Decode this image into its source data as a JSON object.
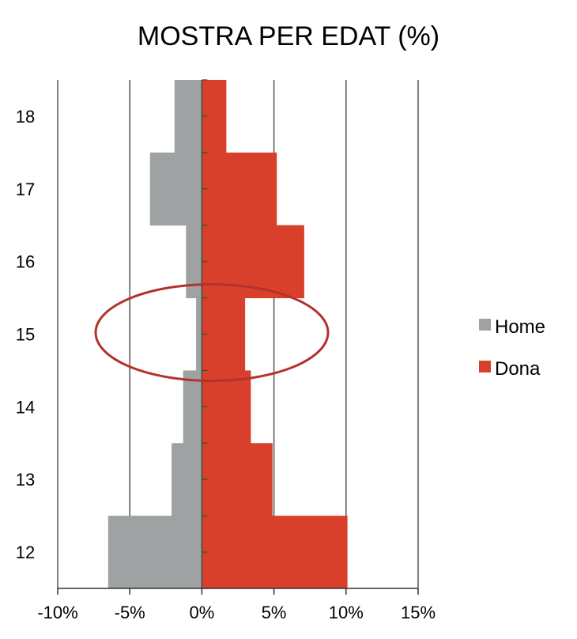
{
  "chart_data": {
    "type": "bar",
    "orientation": "horizontal",
    "title": "MOSTRA PER EDAT (%)",
    "categories": [
      "12",
      "13",
      "14",
      "15",
      "16",
      "17",
      "18"
    ],
    "series": [
      {
        "name": "Home",
        "values": [
          -6.5,
          -2.1,
          -1.3,
          -0.4,
          -1.1,
          -3.6,
          -1.9
        ],
        "color": "#9fa2a3"
      },
      {
        "name": "Dona",
        "values": [
          10.1,
          4.9,
          3.4,
          3.0,
          7.1,
          5.2,
          1.7
        ],
        "color": "#d9402b"
      }
    ],
    "x_tick_labels": [
      "-10%",
      "-5%",
      "0%",
      "5%",
      "10%",
      "15%"
    ],
    "xlim": [
      -10,
      15
    ],
    "grid": true,
    "legend": "right",
    "annotation": {
      "type": "ellipse",
      "highlight_category": "15",
      "color": "#b5312c"
    }
  }
}
